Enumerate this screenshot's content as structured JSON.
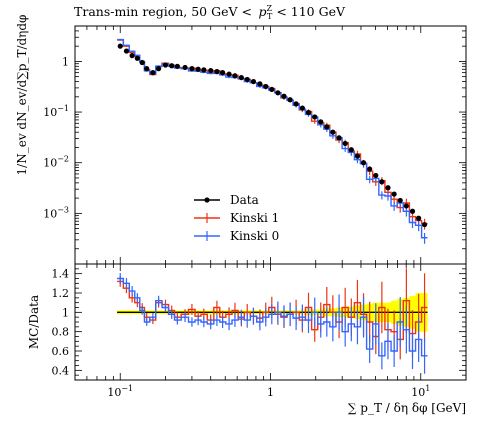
{
  "chart_data": [
    {
      "type": "line",
      "role": "main",
      "title": "Trans-min region, 50 GeV < p_T^Z < 110 GeV",
      "ylabel": "1/N_ev dN_ev/d∑p_T/dηdφ",
      "yscale": "log",
      "xscale": "log",
      "xlim": [
        0.05,
        20
      ],
      "ylim": [
        0.0001,
        5
      ],
      "ytick_labels": [
        "1",
        "10^-1",
        "10^-2",
        "10^-3"
      ],
      "ytick_values": [
        1,
        0.1,
        0.01,
        0.001
      ],
      "legend_position": "center",
      "x": [
        0.1,
        0.11,
        0.12,
        0.13,
        0.14,
        0.15,
        0.165,
        0.18,
        0.2,
        0.22,
        0.24,
        0.27,
        0.3,
        0.33,
        0.36,
        0.4,
        0.44,
        0.48,
        0.53,
        0.58,
        0.64,
        0.7,
        0.77,
        0.85,
        0.93,
        1.02,
        1.12,
        1.23,
        1.35,
        1.48,
        1.63,
        1.79,
        1.97,
        2.16,
        2.37,
        2.6,
        2.86,
        3.14,
        3.45,
        3.79,
        4.16,
        4.57,
        5.02,
        5.51,
        6.05,
        6.65,
        7.3,
        8.02,
        8.81,
        9.68,
        10.6
      ],
      "series": [
        {
          "name": "Data",
          "color": "#000000",
          "marker": "circle",
          "values": [
            2.0,
            1.6,
            1.3,
            1.15,
            0.95,
            0.72,
            0.6,
            0.72,
            0.85,
            0.82,
            0.8,
            0.76,
            0.72,
            0.7,
            0.68,
            0.66,
            0.63,
            0.6,
            0.56,
            0.52,
            0.48,
            0.44,
            0.4,
            0.36,
            0.32,
            0.28,
            0.24,
            0.205,
            0.175,
            0.145,
            0.12,
            0.098,
            0.08,
            0.064,
            0.051,
            0.04,
            0.031,
            0.024,
            0.018,
            0.0135,
            0.01,
            0.0075,
            0.0056,
            0.0042,
            0.0032,
            0.0024,
            0.0018,
            0.0014,
            0.0011,
            0.0008,
            0.0006
          ]
        },
        {
          "name": "Kinski 1",
          "color": "#ee3311",
          "ratio": [
            1.32,
            1.25,
            1.15,
            1.1,
            1.05,
            0.95,
            0.92,
            1.1,
            1.08,
            1.02,
            0.95,
            0.98,
            1.03,
            0.96,
            0.98,
            0.92,
            1.05,
            0.95,
            0.98,
            1.02,
            0.93,
            1.0,
            0.96,
            0.94,
            1.0,
            1.05,
            0.98,
            0.95,
            0.98,
            1.0,
            0.92,
            1.05,
            0.82,
            0.95,
            1.08,
            1.0,
            0.9,
            1.05,
            0.95,
            1.1,
            0.98,
            0.9,
            0.75,
            1.05,
            0.82,
            0.8,
            0.72,
            1.12,
            0.78,
            0.9,
            1.05
          ],
          "values": [
            2.64,
            2.0,
            1.5,
            1.27,
            1.0,
            0.68,
            0.55,
            0.79,
            0.92,
            0.84,
            0.76,
            0.74,
            0.74,
            0.67,
            0.67,
            0.61,
            0.66,
            0.57,
            0.55,
            0.53,
            0.45,
            0.44,
            0.38,
            0.34,
            0.32,
            0.29,
            0.24,
            0.19,
            0.17,
            0.145,
            0.11,
            0.103,
            0.066,
            0.061,
            0.055,
            0.04,
            0.028,
            0.025,
            0.017,
            0.0149,
            0.0098,
            0.0068,
            0.0042,
            0.0044,
            0.0026,
            0.0019,
            0.0013,
            0.0016,
            0.00086,
            0.00072,
            0.00063
          ]
        },
        {
          "name": "Kinski 0",
          "color": "#3366ff",
          "ratio": [
            1.35,
            1.3,
            1.22,
            1.15,
            1.02,
            0.9,
            0.95,
            1.12,
            1.05,
            0.98,
            0.92,
            0.95,
            0.9,
            0.92,
            0.9,
            0.88,
            0.92,
            0.9,
            0.88,
            0.92,
            0.95,
            0.92,
            0.96,
            0.9,
            0.95,
            0.98,
            1.0,
            0.96,
            0.98,
            0.94,
            0.95,
            0.92,
            1.0,
            0.88,
            0.9,
            0.85,
            1.0,
            0.8,
            0.88,
            0.85,
            0.95,
            0.62,
            0.88,
            0.55,
            0.7,
            0.6,
            0.9,
            0.82,
            0.6,
            0.72,
            0.55
          ],
          "values": [
            2.7,
            2.08,
            1.59,
            1.32,
            0.97,
            0.65,
            0.57,
            0.81,
            0.89,
            0.8,
            0.74,
            0.72,
            0.65,
            0.64,
            0.61,
            0.58,
            0.58,
            0.54,
            0.49,
            0.48,
            0.46,
            0.4,
            0.38,
            0.32,
            0.3,
            0.27,
            0.24,
            0.197,
            0.172,
            0.136,
            0.114,
            0.09,
            0.08,
            0.056,
            0.046,
            0.034,
            0.031,
            0.019,
            0.016,
            0.0115,
            0.0095,
            0.0047,
            0.0049,
            0.0023,
            0.0022,
            0.0014,
            0.0016,
            0.0011,
            0.00066,
            0.00058,
            0.00033
          ]
        }
      ]
    },
    {
      "type": "line",
      "role": "ratio",
      "ylabel": "MC/Data",
      "xlabel": "∑ p_T / δη δφ [GeV]",
      "xscale": "log",
      "xlim": [
        0.05,
        20
      ],
      "ylim": [
        0.3,
        1.5
      ],
      "ytick_labels": [
        "0.4",
        "0.6",
        "0.8",
        "1",
        "1.2",
        "1.4"
      ],
      "ytick_values": [
        0.4,
        0.6,
        0.8,
        1.0,
        1.2,
        1.4
      ],
      "xtick_labels": [
        "10^-1",
        "1",
        "10^1"
      ],
      "xtick_values": [
        0.1,
        1,
        10
      ],
      "band_color": "#ffff00",
      "band_upper": [
        1.02,
        1.02,
        1.02,
        1.02,
        1.02,
        1.02,
        1.02,
        1.02,
        1.02,
        1.02,
        1.02,
        1.02,
        1.02,
        1.02,
        1.02,
        1.02,
        1.02,
        1.02,
        1.02,
        1.02,
        1.02,
        1.02,
        1.02,
        1.02,
        1.02,
        1.02,
        1.02,
        1.02,
        1.02,
        1.02,
        1.02,
        1.03,
        1.03,
        1.03,
        1.04,
        1.04,
        1.05,
        1.05,
        1.06,
        1.07,
        1.08,
        1.09,
        1.1,
        1.1,
        1.1,
        1.12,
        1.14,
        1.15,
        1.17,
        1.2,
        1.2
      ],
      "band_lower": [
        0.98,
        0.98,
        0.98,
        0.98,
        0.98,
        0.98,
        0.98,
        0.98,
        0.98,
        0.98,
        0.98,
        0.98,
        0.98,
        0.98,
        0.98,
        0.98,
        0.98,
        0.98,
        0.98,
        0.98,
        0.98,
        0.98,
        0.98,
        0.98,
        0.98,
        0.98,
        0.98,
        0.98,
        0.98,
        0.98,
        0.98,
        0.97,
        0.97,
        0.97,
        0.96,
        0.96,
        0.95,
        0.95,
        0.94,
        0.93,
        0.92,
        0.91,
        0.9,
        0.9,
        0.9,
        0.88,
        0.86,
        0.85,
        0.83,
        0.8,
        0.8
      ]
    }
  ]
}
